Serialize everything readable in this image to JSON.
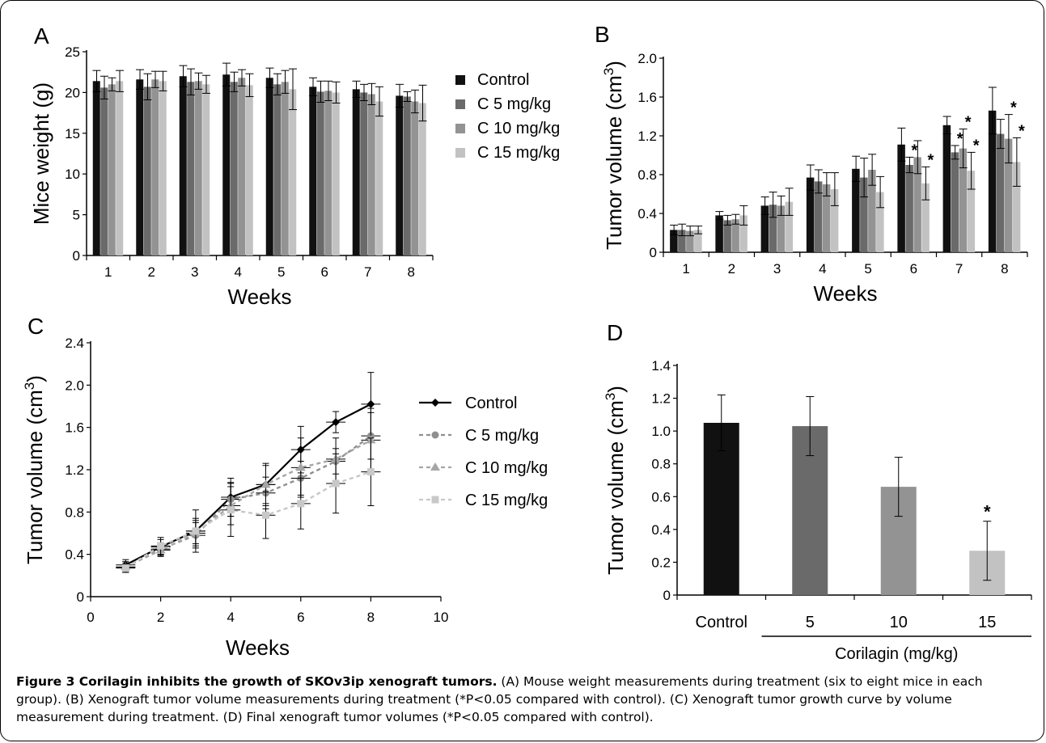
{
  "colors": {
    "control": "#111111",
    "c5": "#6a6a6a",
    "c10": "#939393",
    "c15": "#c2c2c2"
  },
  "caption": {
    "title": "Figure 3 Corilagin inhibits the growth of SKOv3ip xenograft tumors.",
    "body": " (A) Mouse weight measurements during treatment (six to eight mice in each group). (B) Xenograft tumor volume measurements during treatment (*P<0.05 compared with control). (C) Xenograft tumor growth curve by volume measurement during treatment. (D) Final xenograft tumor volumes (*P<0.05 compared with control)."
  },
  "chart_data": [
    {
      "panel": "A",
      "type": "bar",
      "xlabel": "Weeks",
      "ylabel": "Mice weight (g)",
      "categories": [
        "1",
        "2",
        "3",
        "4",
        "5",
        "6",
        "7",
        "8"
      ],
      "ylim": [
        0,
        25
      ],
      "yticks": [
        0,
        5,
        10,
        15,
        20,
        25
      ],
      "legend": [
        "Control",
        "C 5 mg/kg",
        "C 10 mg/kg",
        "C 15 mg/kg"
      ],
      "series": [
        {
          "name": "Control",
          "values": [
            21.4,
            21.6,
            22.0,
            22.2,
            21.8,
            20.7,
            20.4,
            19.6
          ],
          "errors": [
            1.3,
            1.2,
            1.3,
            1.4,
            1.2,
            1.1,
            1.0,
            1.4
          ]
        },
        {
          "name": "C 5 mg/kg",
          "values": [
            20.6,
            20.7,
            21.3,
            21.3,
            21.0,
            20.1,
            20.0,
            19.5
          ],
          "errors": [
            1.4,
            1.6,
            1.6,
            1.2,
            1.3,
            1.3,
            1.0,
            0.6
          ]
        },
        {
          "name": "C 10 mg/kg",
          "values": [
            21.0,
            21.6,
            21.4,
            21.8,
            21.3,
            20.2,
            19.8,
            18.9
          ],
          "errors": [
            0.8,
            1.0,
            1.0,
            1.0,
            1.4,
            1.2,
            1.3,
            1.4
          ]
        },
        {
          "name": "C 15 mg/kg",
          "values": [
            21.4,
            21.4,
            21.0,
            20.9,
            20.4,
            20.0,
            18.9,
            18.7
          ],
          "errors": [
            1.3,
            1.2,
            1.1,
            1.4,
            2.5,
            1.3,
            1.8,
            2.2
          ]
        }
      ]
    },
    {
      "panel": "B",
      "type": "bar",
      "xlabel": "Weeks",
      "ylabel": "Tumor volume (cm",
      "ylabel_sup": "3",
      "ylabel_end": ")",
      "categories": [
        "1",
        "2",
        "3",
        "4",
        "5",
        "6",
        "7",
        "8"
      ],
      "ylim": [
        0,
        2.0
      ],
      "yticks": [
        "0",
        "0.4",
        "0.8",
        "1.2",
        "1.6",
        "2.0"
      ],
      "series": [
        {
          "name": "Control",
          "values": [
            0.23,
            0.38,
            0.48,
            0.77,
            0.86,
            1.11,
            1.31,
            1.46
          ],
          "errors": [
            0.05,
            0.04,
            0.09,
            0.13,
            0.13,
            0.17,
            0.09,
            0.24
          ]
        },
        {
          "name": "C 5 mg/kg",
          "values": [
            0.23,
            0.33,
            0.49,
            0.73,
            0.77,
            0.9,
            1.03,
            1.22
          ],
          "errors": [
            0.06,
            0.05,
            0.13,
            0.12,
            0.2,
            0.08,
            0.07,
            0.15
          ]
        },
        {
          "name": "C 10 mg/kg",
          "values": [
            0.22,
            0.34,
            0.48,
            0.7,
            0.85,
            0.98,
            1.07,
            1.17
          ],
          "errors": [
            0.05,
            0.05,
            0.1,
            0.12,
            0.16,
            0.17,
            0.2,
            0.25
          ]
        },
        {
          "name": "C 15 mg/kg",
          "values": [
            0.23,
            0.38,
            0.52,
            0.65,
            0.62,
            0.71,
            0.84,
            0.93
          ],
          "errors": [
            0.04,
            0.1,
            0.14,
            0.17,
            0.16,
            0.17,
            0.19,
            0.25
          ]
        }
      ],
      "significance": [
        {
          "week": 6,
          "series": 1,
          "label": "*"
        },
        {
          "week": 6,
          "series": 3,
          "label": "*"
        },
        {
          "week": 7,
          "series": 1,
          "label": "*"
        },
        {
          "week": 7,
          "series": 2,
          "label": "*"
        },
        {
          "week": 7,
          "series": 3,
          "label": "*"
        },
        {
          "week": 8,
          "series": 2,
          "label": "*"
        },
        {
          "week": 8,
          "series": 3,
          "label": "*"
        }
      ]
    },
    {
      "panel": "C",
      "type": "line",
      "xlabel": "Weeks",
      "ylabel": "Tumor volume (cm",
      "ylabel_sup": "3",
      "ylabel_end": ")",
      "xlim": [
        0,
        10
      ],
      "xticks": [
        0,
        2,
        4,
        6,
        8,
        10
      ],
      "ylim": [
        0,
        2.4
      ],
      "yticks": [
        "0",
        "0.4",
        "0.8",
        "1.2",
        "1.6",
        "2.0",
        "2.4"
      ],
      "x": [
        1,
        2,
        3,
        4,
        5,
        6,
        7,
        8
      ],
      "series": [
        {
          "name": "Control",
          "marker": "diamond",
          "dashed": false,
          "values": [
            0.3,
            0.47,
            0.62,
            0.94,
            1.06,
            1.39,
            1.65,
            1.82
          ],
          "errors": [
            0.05,
            0.07,
            0.2,
            0.18,
            0.2,
            0.22,
            0.1,
            0.3
          ]
        },
        {
          "name": "C 5 mg/kg",
          "marker": "circle",
          "dashed": true,
          "values": [
            0.28,
            0.45,
            0.58,
            0.92,
            0.98,
            1.12,
            1.28,
            1.52
          ],
          "errors": [
            0.05,
            0.06,
            0.12,
            0.16,
            0.15,
            0.16,
            0.12,
            0.22
          ]
        },
        {
          "name": "C 10 mg/kg",
          "marker": "triangle",
          "dashed": true,
          "values": [
            0.28,
            0.44,
            0.6,
            0.86,
            1.06,
            1.22,
            1.3,
            1.48
          ],
          "errors": [
            0.05,
            0.06,
            0.12,
            0.18,
            0.18,
            0.28,
            0.2,
            0.3
          ]
        },
        {
          "name": "C 15 mg/kg",
          "marker": "square",
          "dashed": true,
          "values": [
            0.27,
            0.48,
            0.62,
            0.82,
            0.77,
            0.88,
            1.07,
            1.18
          ],
          "errors": [
            0.04,
            0.08,
            0.12,
            0.25,
            0.22,
            0.24,
            0.28,
            0.32
          ]
        }
      ],
      "legend": [
        "Control",
        "C 5 mg/kg",
        "C 10 mg/kg",
        "C 15 mg/kg"
      ]
    },
    {
      "panel": "D",
      "type": "bar",
      "ylabel": "Tumor volume (cm",
      "ylabel_sup": "3",
      "ylabel_end": ")",
      "xgroup_label": "Corilagin (mg/kg)",
      "categories": [
        "Control",
        "5",
        "10",
        "15"
      ],
      "values": [
        1.05,
        1.03,
        0.66,
        0.27
      ],
      "errors": [
        0.17,
        0.18,
        0.18,
        0.18
      ],
      "ylim": [
        0,
        1.4
      ],
      "yticks": [
        "0",
        "0.2",
        "0.4",
        "0.6",
        "0.8",
        "1.0",
        "1.2",
        "1.4"
      ],
      "significance": [
        {
          "index": 3,
          "label": "*"
        }
      ]
    }
  ]
}
